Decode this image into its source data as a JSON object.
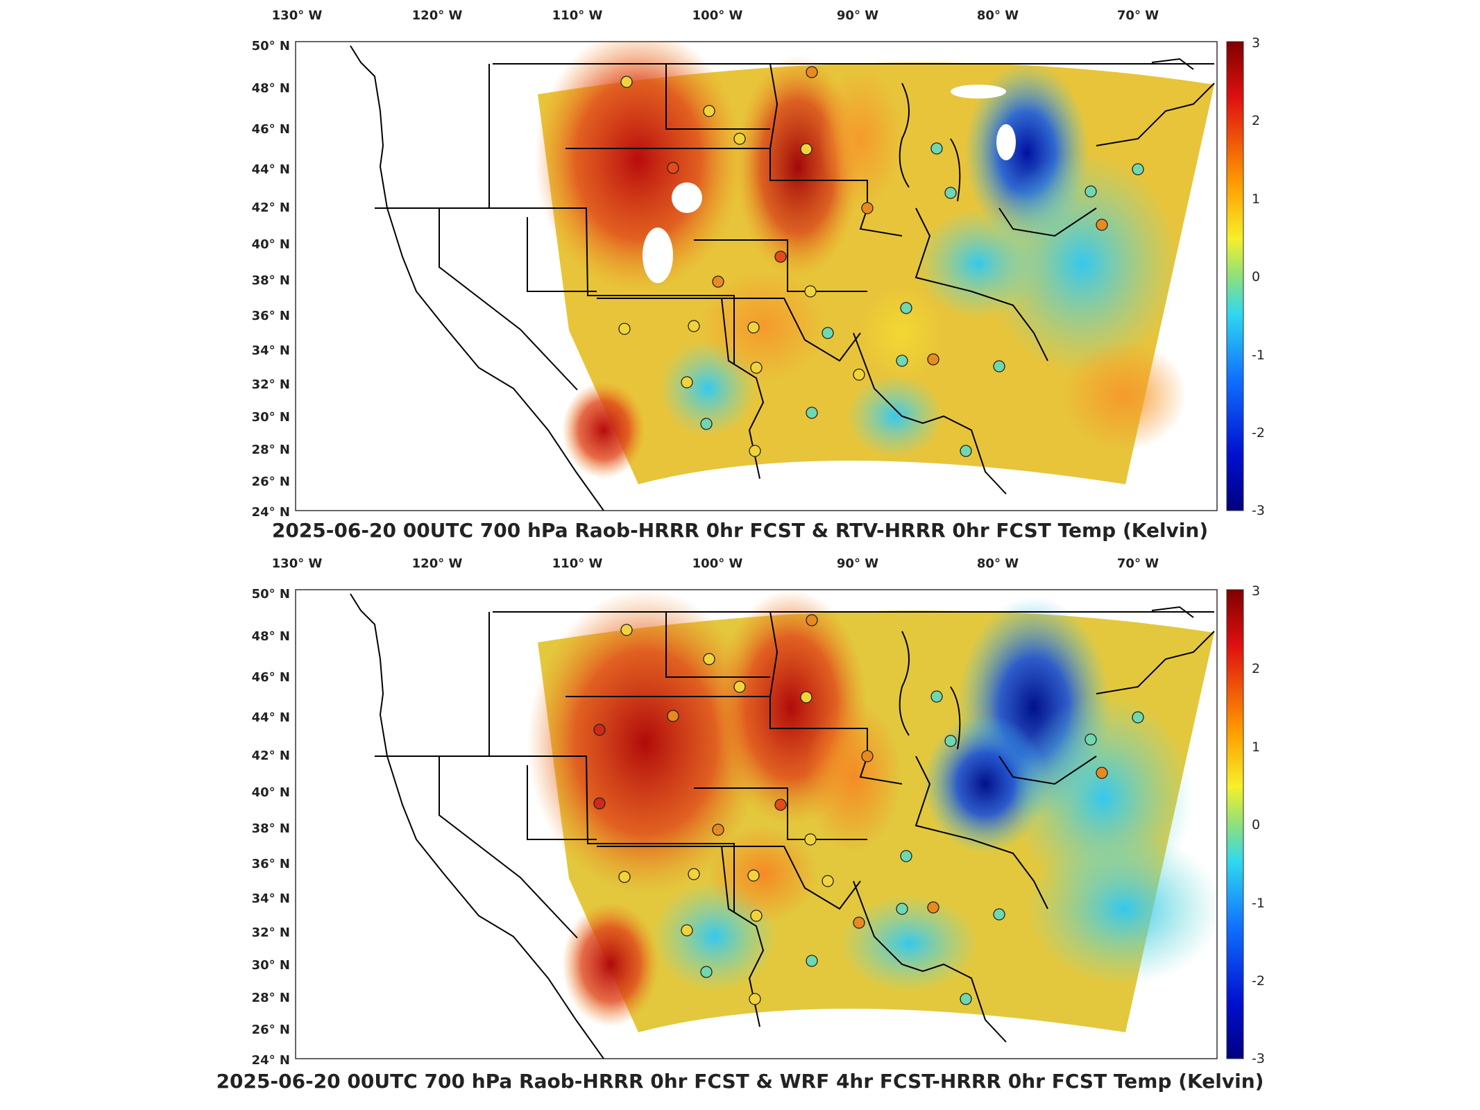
{
  "panels": [
    {
      "id": "top",
      "title": "2025-06-20 00UTC 700 hPa Raob-HRRR 0hr FCST & RTV-HRRR 0hr FCST Temp (Kelvin)",
      "lon_labels": [
        "130° W",
        "120° W",
        "110° W",
        "100° W",
        "90° W",
        "80° W",
        "70° W"
      ],
      "lat_labels": [
        "50° N",
        "48° N",
        "46° N",
        "44° N",
        "42° N",
        "40° N",
        "38° N",
        "36° N",
        "34° N",
        "32° N",
        "30° N",
        "28° N",
        "26° N",
        "24° N"
      ],
      "colorbar_ticks": [
        "3",
        "2",
        "1",
        "0",
        "-1",
        "-2",
        "-3"
      ]
    },
    {
      "id": "bottom",
      "title": "2025-06-20 00UTC 700 hPa Raob-HRRR 0hr FCST & WRF 4hr FCST-HRRR 0hr FCST Temp (Kelvin)",
      "lon_labels": [
        "130° W",
        "120° W",
        "110° W",
        "100° W",
        "90° W",
        "80° W",
        "70° W"
      ],
      "lat_labels": [
        "50° N",
        "48° N",
        "46° N",
        "44° N",
        "42° N",
        "40° N",
        "38° N",
        "36° N",
        "34° N",
        "32° N",
        "30° N",
        "28° N",
        "26° N",
        "24° N"
      ],
      "colorbar_ticks": [
        "3",
        "2",
        "1",
        "0",
        "-1",
        "-2",
        "-3"
      ]
    }
  ],
  "colors": {
    "dark_red": "#8b0000",
    "red": "#d7301f",
    "orange": "#fc8d3c",
    "yellow": "#f7e733",
    "cyan": "#48d6e8",
    "blue": "#1f6fd6",
    "dark_blue": "#0a0a8a"
  }
}
